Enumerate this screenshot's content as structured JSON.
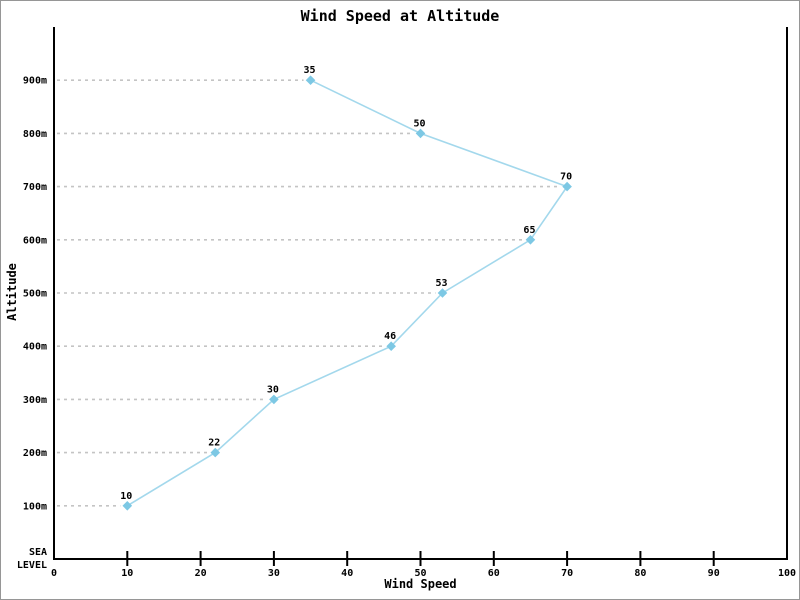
{
  "window": {
    "background": "#ffffff",
    "border_color": "#969696"
  },
  "chart_data": {
    "type": "line",
    "title": "Wind Speed at Altitude",
    "xlabel": "Wind Speed",
    "ylabel": "Altitude",
    "xlim": [
      0,
      100
    ],
    "ylim_meters": [
      0,
      1000
    ],
    "grid": "dashed horizontal leader lines from y-axis to each data point",
    "legend_position": "none",
    "x_ticks": [
      0,
      10,
      20,
      30,
      40,
      50,
      60,
      70,
      80,
      90,
      100
    ],
    "y_ticks": [
      {
        "value": 100,
        "label": "100m"
      },
      {
        "value": 200,
        "label": "200m"
      },
      {
        "value": 300,
        "label": "300m"
      },
      {
        "value": 400,
        "label": "400m"
      },
      {
        "value": 500,
        "label": "500m"
      },
      {
        "value": 600,
        "label": "600m"
      },
      {
        "value": 700,
        "label": "700m"
      },
      {
        "value": 800,
        "label": "800m"
      },
      {
        "value": 900,
        "label": "900m"
      }
    ],
    "y_zero_label_lines": [
      "SEA",
      "LEVEL"
    ],
    "series": [
      {
        "name": "Wind Speed",
        "marker": "diamond",
        "line_color": "#a3d8ec",
        "marker_color": "#7dc8e4",
        "points": [
          {
            "x": 10,
            "altitude_m": 100
          },
          {
            "x": 22,
            "altitude_m": 200
          },
          {
            "x": 30,
            "altitude_m": 300
          },
          {
            "x": 46,
            "altitude_m": 400
          },
          {
            "x": 53,
            "altitude_m": 500
          },
          {
            "x": 65,
            "altitude_m": 600
          },
          {
            "x": 70,
            "altitude_m": 700
          },
          {
            "x": 50,
            "altitude_m": 800
          },
          {
            "x": 35,
            "altitude_m": 900
          }
        ],
        "point_labels": [
          "10",
          "22",
          "30",
          "46",
          "53",
          "65",
          "70",
          "50",
          "35"
        ]
      }
    ],
    "colors": {
      "grid": "#c4c4c4",
      "axis": "#000000",
      "text": "#000000"
    }
  }
}
